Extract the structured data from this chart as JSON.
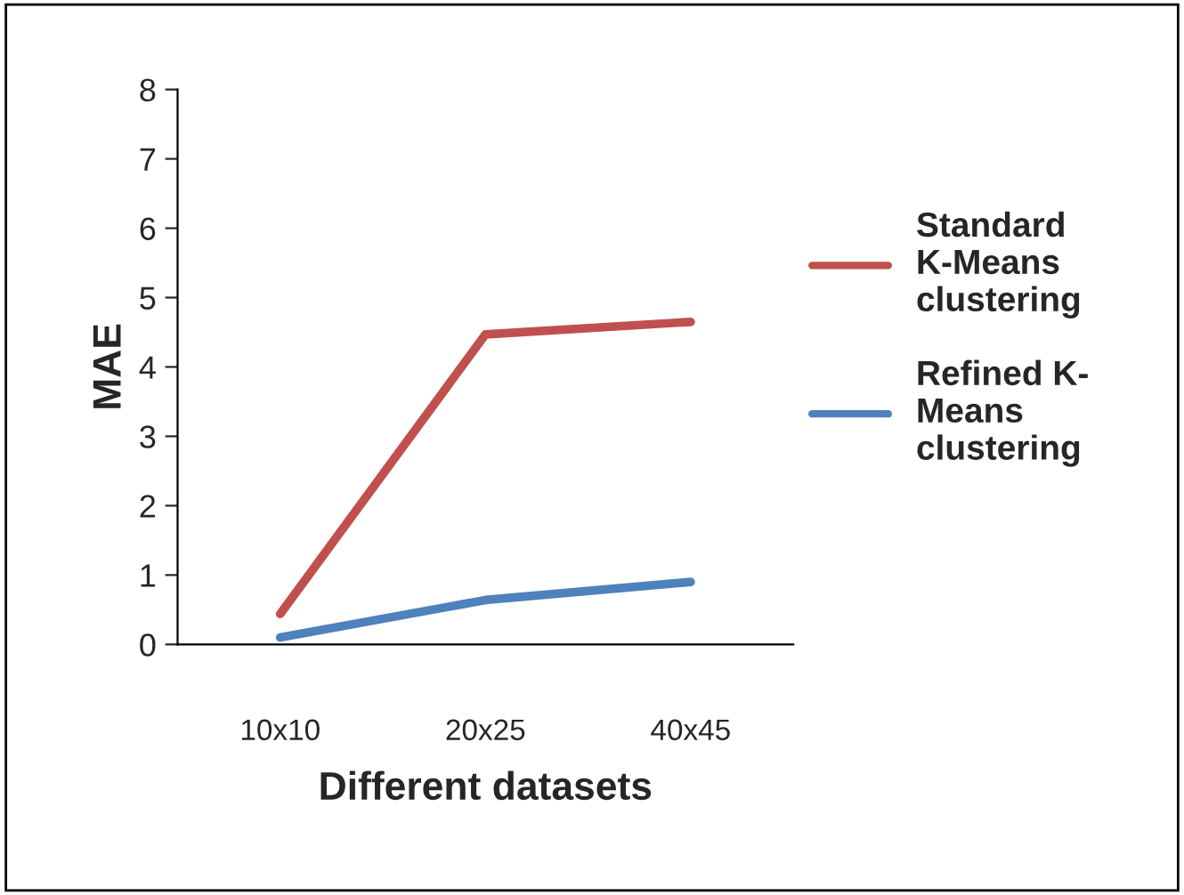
{
  "chart_data": {
    "type": "line",
    "xlabel": "Different datasets",
    "ylabel": "MAE",
    "categories": [
      "10x10",
      "20x25",
      "40x45"
    ],
    "series": [
      {
        "name": "Standard\nK-Means\nclustering",
        "color": "#c0504d",
        "values": [
          0.44,
          4.47,
          4.65
        ]
      },
      {
        "name": "Refined K-\nMeans\nclustering",
        "color": "#4f81bd",
        "values": [
          0.1,
          0.64,
          0.9
        ]
      }
    ],
    "ylim": [
      0,
      8
    ],
    "yticks": [
      0,
      1,
      2,
      3,
      4,
      5,
      6,
      7,
      8
    ],
    "grid": false,
    "legend": "right",
    "marker": "none",
    "line_style": "solid"
  }
}
